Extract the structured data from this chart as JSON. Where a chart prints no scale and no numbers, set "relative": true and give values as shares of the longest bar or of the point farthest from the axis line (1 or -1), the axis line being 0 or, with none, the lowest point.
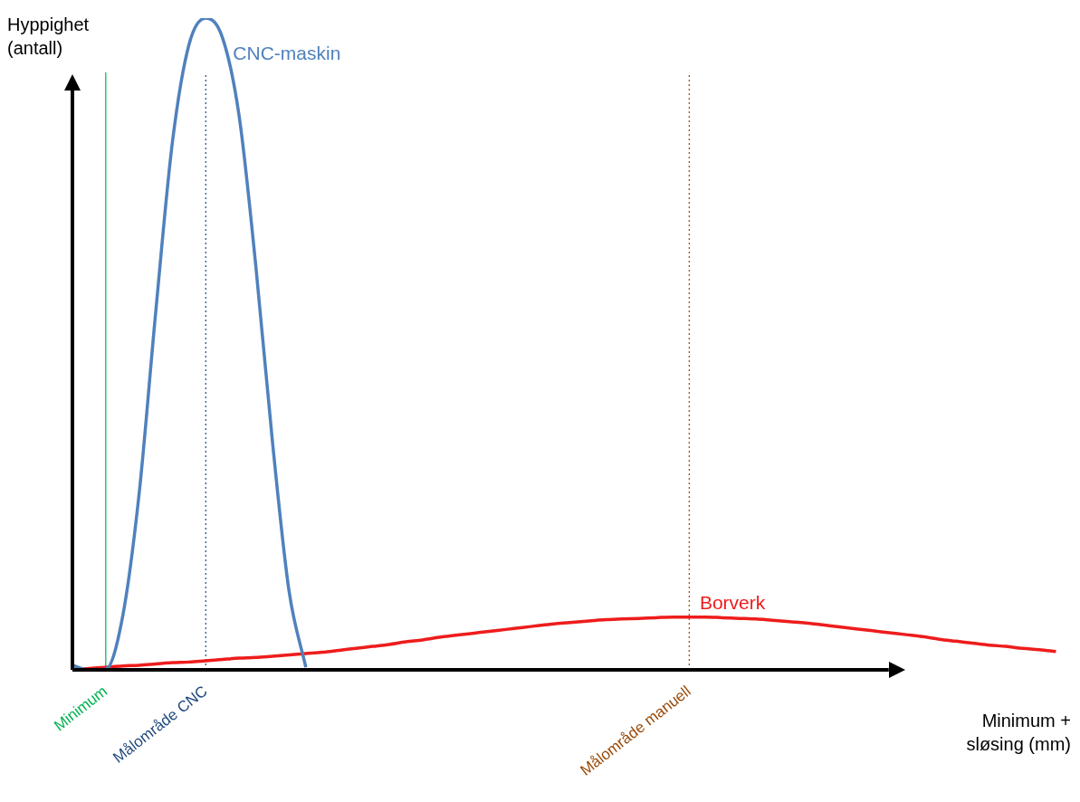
{
  "chart_data": {
    "type": "line",
    "relative": true,
    "ylabel": "Hyppighet (antall)",
    "xlabel": "Minimum + sløsing (mm)",
    "legend": false,
    "marker": "none",
    "line_style": "solid",
    "categories": [
      null,
      null,
      "Minimum",
      null,
      null,
      null,
      null,
      null,
      "Målområde CNC",
      null,
      null,
      null,
      null,
      null,
      null,
      null,
      null,
      null,
      null,
      null,
      null,
      null,
      null,
      null,
      null,
      null,
      null,
      null,
      null,
      null,
      null,
      null,
      null,
      null,
      null,
      null,
      null,
      "Målområde manuell",
      null,
      null,
      null,
      null,
      null,
      null,
      null,
      null,
      null,
      null,
      null,
      null,
      null,
      null,
      null,
      null,
      null,
      null,
      null,
      null,
      null,
      null
    ],
    "series": [
      {
        "name": "CNC-maskin",
        "color": "#4f81bd",
        "values": [
          0.007,
          0,
          0.001,
          0.08,
          0.27,
          0.55,
          0.81,
          0.96,
          1,
          0.97,
          0.85,
          0.62,
          0.35,
          0.12,
          0.004,
          null,
          null,
          null,
          null,
          null,
          null,
          null,
          null,
          null,
          null,
          null,
          null,
          null,
          null,
          null,
          null,
          null,
          null,
          null,
          null,
          null,
          null,
          null,
          null,
          null,
          null,
          null,
          null,
          null,
          null,
          null,
          null,
          null,
          null,
          null,
          null,
          null,
          null,
          null,
          null,
          null,
          null,
          null,
          null,
          null
        ]
      },
      {
        "name": "Borverk",
        "color": "#ee1c1c",
        "values": [
          0,
          0.002,
          0.004,
          0.006,
          0.007,
          0.009,
          0.011,
          0.012,
          0.014,
          0.016,
          0.018,
          0.019,
          0.021,
          0.023,
          0.025,
          0.027,
          0.03,
          0.033,
          0.036,
          0.039,
          0.043,
          0.046,
          0.05,
          0.053,
          0.056,
          0.059,
          0.062,
          0.065,
          0.068,
          0.071,
          0.073,
          0.075,
          0.077,
          0.078,
          0.079,
          0.08,
          0.081,
          0.081,
          0.081,
          0.08,
          0.079,
          0.078,
          0.076,
          0.074,
          0.072,
          0.069,
          0.066,
          0.063,
          0.06,
          0.057,
          0.054,
          0.051,
          0.047,
          0.044,
          0.041,
          0.038,
          0.036,
          0.033,
          0.031,
          0.028
        ]
      }
    ],
    "ref_lines": [
      {
        "axis": "x",
        "value": "Minimum",
        "color": "#00b050",
        "line_style": "solid"
      },
      {
        "axis": "x",
        "value": "Målområde CNC",
        "color": "#1f497d",
        "line_style": "dotted"
      },
      {
        "axis": "x",
        "value": "Målområde manuell",
        "color": "#984806",
        "line_style": "dotted"
      }
    ]
  }
}
